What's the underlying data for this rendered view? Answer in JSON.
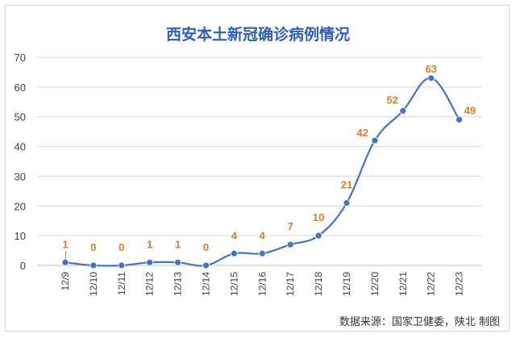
{
  "chart_data": {
    "type": "line",
    "title": "西安本土新冠确诊病例情况",
    "categories": [
      "12/9",
      "12/10",
      "12/11",
      "12/12",
      "12/13",
      "12/14",
      "12/15",
      "12/16",
      "12/17",
      "12/18",
      "12/19",
      "12/20",
      "12/21",
      "12/22",
      "12/23"
    ],
    "series": [
      {
        "values": [
          1,
          0,
          0,
          1,
          1,
          0,
          4,
          4,
          7,
          10,
          21,
          42,
          52,
          63,
          49
        ]
      }
    ],
    "yticks": [
      0,
      10,
      20,
      30,
      40,
      50,
      60,
      70
    ],
    "ylim": [
      0,
      70
    ],
    "grid": true,
    "colors": {
      "line": "#4472c4",
      "label": "#e07b20",
      "title": "#2e5fb6",
      "grid": "#d9d9d9"
    }
  },
  "source_note": "数据来源：国家卫健委，陕北 制图"
}
